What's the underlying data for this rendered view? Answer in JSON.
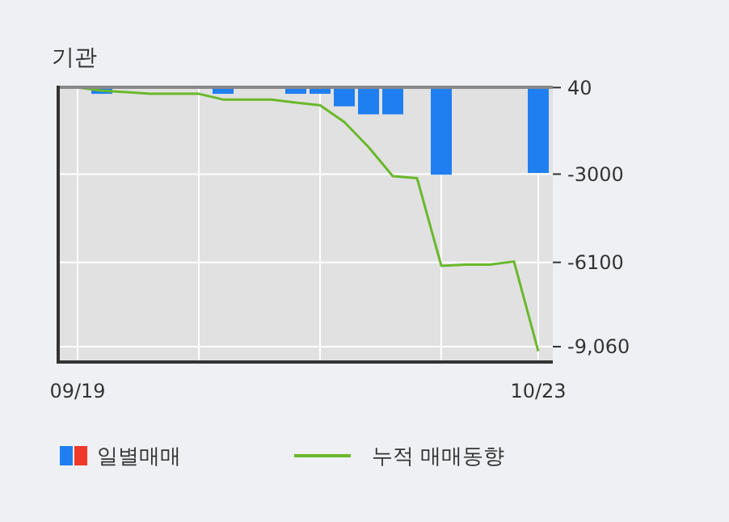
{
  "chart_data": {
    "type": "bar",
    "title": "기관",
    "categories": [
      "09/19",
      null,
      null,
      null,
      null,
      null,
      null,
      null,
      null,
      null,
      null,
      null,
      null,
      null,
      null,
      null,
      null,
      null,
      null,
      "10/23"
    ],
    "series": [
      {
        "name": "일별매매",
        "color": "#1f7ff0",
        "values": [
          0,
          -180,
          0,
          0,
          0,
          0,
          -180,
          0,
          0,
          -180,
          -180,
          -620,
          -900,
          -900,
          0,
          -3020,
          0,
          0,
          0,
          -2960
        ]
      },
      {
        "name": "누적 매매동향",
        "type": "line",
        "color": "#6ab82a",
        "values": [
          40,
          -70,
          -120,
          -180,
          -180,
          -180,
          -380,
          -380,
          -380,
          -490,
          -580,
          -1170,
          -2050,
          -3070,
          -3140,
          -6220,
          -6180,
          -6180,
          -6070,
          -9220
        ]
      }
    ],
    "ylim": [
      -9600,
      50
    ],
    "yticks": [
      40,
      -3000,
      -6100,
      {
        "value": -9060,
        "label": "-9,060"
      }
    ],
    "grid": true,
    "legend": "bottom",
    "marker": "none"
  }
}
